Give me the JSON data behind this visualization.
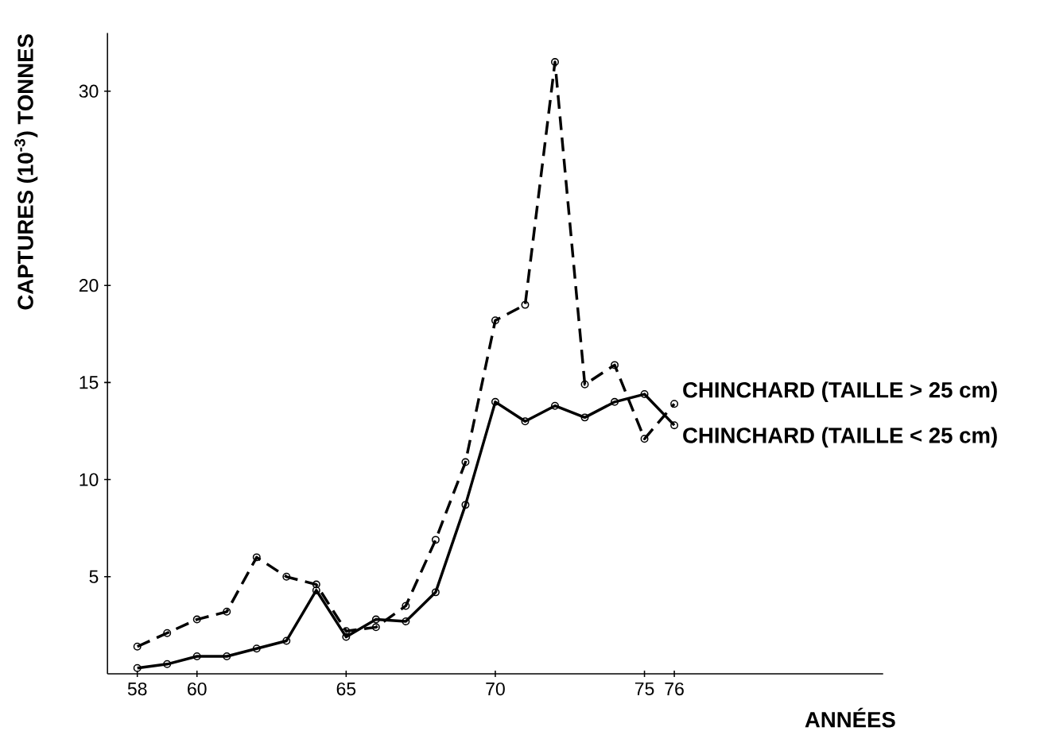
{
  "chart_data": {
    "type": "line",
    "ylabel": "CAPTURES (10$^{-3}$) TONNES",
    "xlabel": "ANNÉES",
    "x": [
      58,
      59,
      60,
      61,
      62,
      63,
      64,
      65,
      66,
      67,
      68,
      69,
      70,
      71,
      72,
      73,
      74,
      75,
      76
    ],
    "xlim": [
      57,
      83
    ],
    "xticks": [
      58,
      60,
      65,
      70,
      75,
      76
    ],
    "ylim": [
      0,
      33
    ],
    "yticks": [
      5,
      10,
      15,
      20,
      30
    ],
    "marker": "circle",
    "grid": false,
    "legend": false,
    "series": [
      {
        "name": "CHINCHARD (TAILLE > 25 cm)",
        "color": "#000000",
        "line_style": "dashed",
        "values": [
          1.4,
          2.1,
          2.8,
          3.2,
          6.0,
          5.0,
          4.6,
          2.2,
          2.4,
          3.5,
          6.9,
          10.9,
          18.2,
          19.0,
          31.5,
          14.9,
          15.9,
          12.1,
          13.9
        ]
      },
      {
        "name": "CHINCHARD (TAILLE < 25 cm)",
        "color": "#000000",
        "line_style": "solid",
        "values": [
          0.3,
          0.5,
          0.9,
          0.9,
          1.3,
          1.7,
          4.3,
          1.9,
          2.8,
          2.7,
          4.2,
          8.7,
          14.0,
          13.0,
          13.8,
          13.2,
          14.0,
          14.4,
          12.8
        ]
      }
    ]
  }
}
